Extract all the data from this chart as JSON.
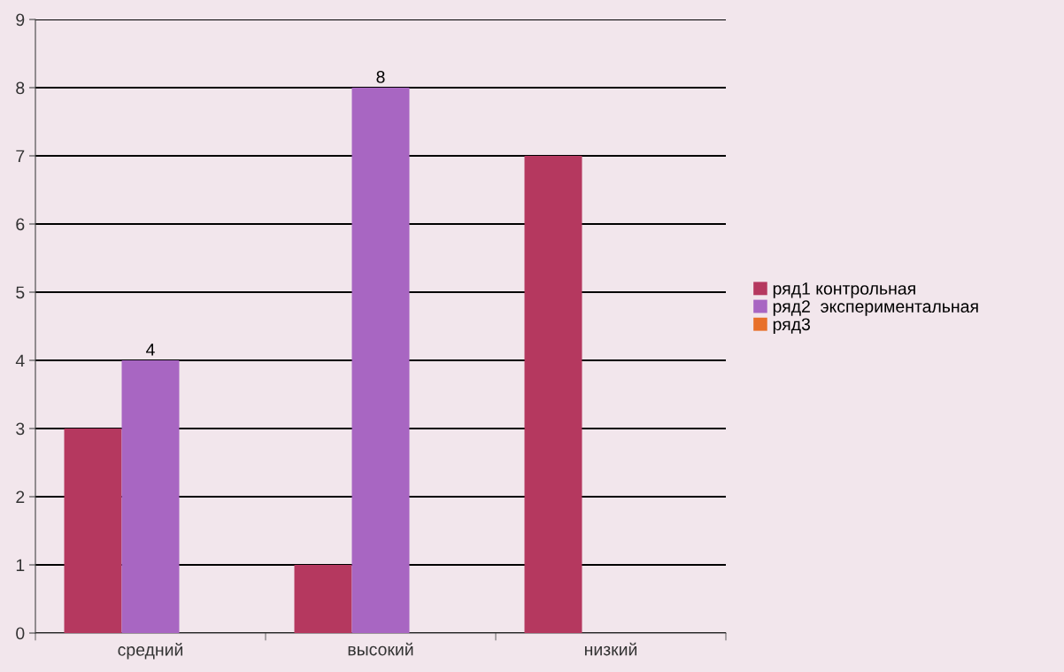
{
  "chart_data": {
    "type": "bar",
    "categories": [
      "средний",
      "высокий",
      "низкий"
    ],
    "series": [
      {
        "name": "ряд1 контрольная",
        "color": "#b5385f",
        "values": [
          3,
          1,
          7
        ]
      },
      {
        "name": "ряд2  экспериментальная",
        "color": "#a866c2",
        "values": [
          4,
          8,
          null
        ],
        "value_labels": [
          "4",
          "8",
          null
        ]
      },
      {
        "name": "ряд3",
        "color": "#e8702a",
        "values": [
          null,
          null,
          null
        ]
      }
    ],
    "ylim": [
      0,
      9
    ],
    "yticks": [
      0,
      1,
      2,
      3,
      4,
      5,
      6,
      7,
      8,
      9
    ],
    "grid": "y",
    "legend": "right"
  }
}
